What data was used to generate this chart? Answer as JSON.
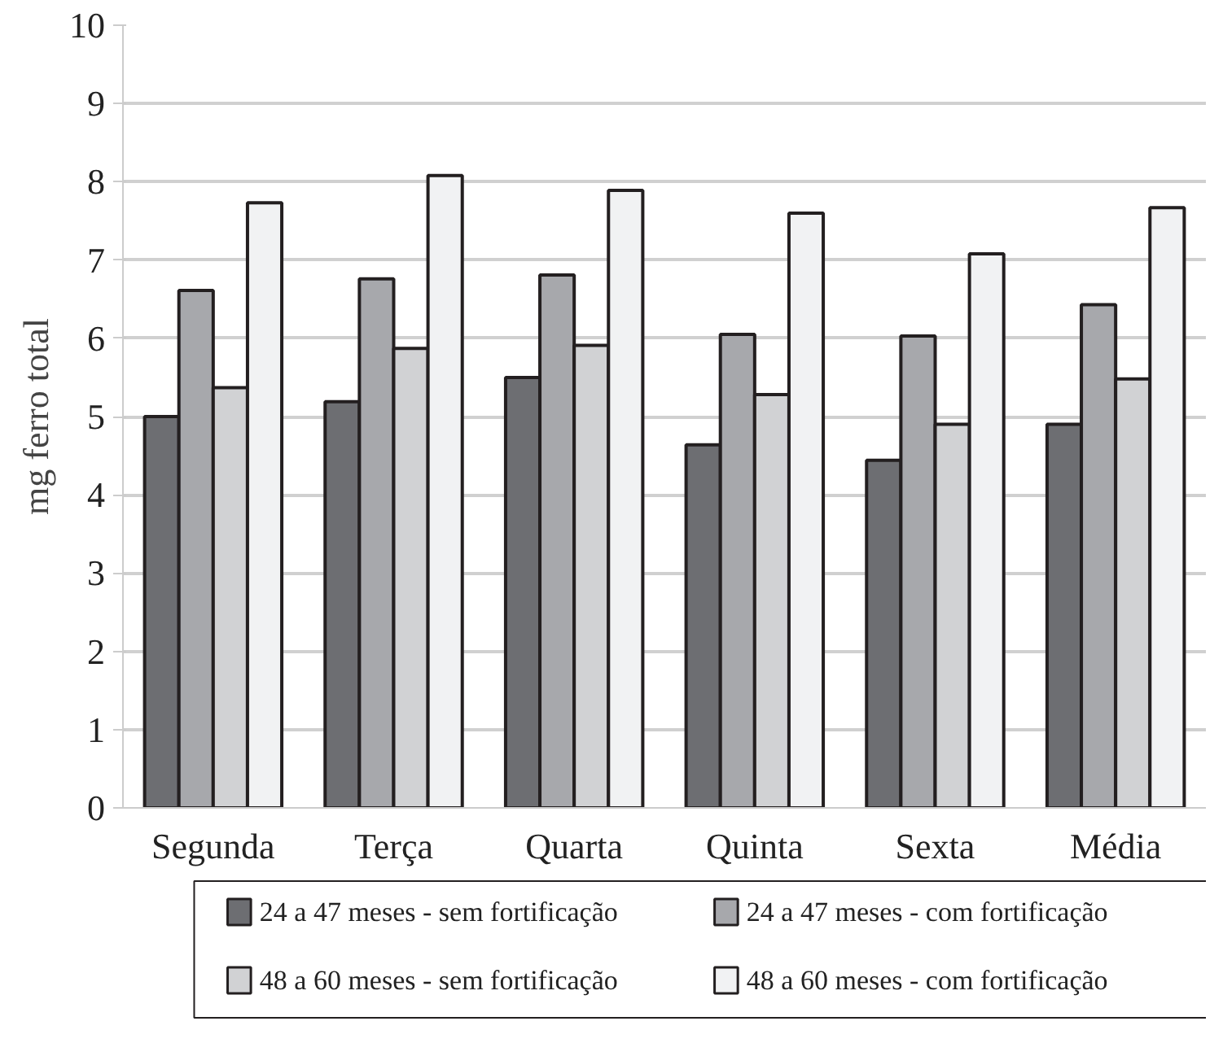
{
  "chart_data": {
    "type": "bar",
    "ylabel": "mg ferro total",
    "categories": [
      "Segunda",
      "Terça",
      "Quarta",
      "Quinta",
      "Sexta",
      "Média"
    ],
    "series": [
      {
        "name": "24 a 47 meses - sem fortificação",
        "color": "#6d6e72",
        "values": [
          5.0,
          5.19,
          5.5,
          4.64,
          4.44,
          4.9
        ]
      },
      {
        "name": "24 a 47 meses - com fortificação",
        "color": "#a7a8ac",
        "values": [
          6.61,
          6.76,
          6.81,
          6.05,
          6.03,
          6.43
        ]
      },
      {
        "name": "48 a 60 meses - sem fortificação",
        "color": "#d1d2d4",
        "values": [
          5.37,
          5.87,
          5.91,
          5.28,
          4.9,
          5.48
        ]
      },
      {
        "name": "48 a 60 meses - com fortificação",
        "color": "#f1f2f3",
        "values": [
          7.73,
          8.08,
          7.89,
          7.6,
          7.08,
          7.67
        ]
      }
    ],
    "ylim": [
      0,
      10
    ],
    "yticks": [
      0,
      1,
      2,
      3,
      4,
      5,
      6,
      7,
      8,
      9,
      10
    ],
    "grid": "y",
    "legend": "bottom"
  }
}
